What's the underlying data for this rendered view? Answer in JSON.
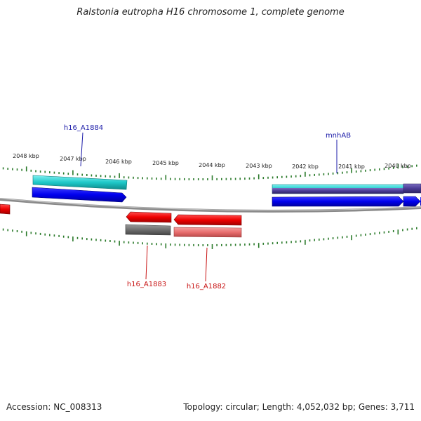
{
  "title": "Ralstonia eutropha H16 chromosome 1, complete genome",
  "accession": "Accession: NC_008313",
  "summary": "Topology: circular; Length: 4,052,032 bp; Genes: 3,711",
  "tick_labels": [
    "2048 kbp",
    "2047 kbp",
    "2046 kbp",
    "2045 kbp",
    "2044 kbp",
    "2043 kbp",
    "2042 kbp",
    "2041 kbp",
    "2040 kbp"
  ],
  "gene_labels": {
    "h16_A1884": "h16_A1884",
    "mnhAB": "mnhAB",
    "h16_A1883": "h16_A1883",
    "h16_A1882": "h16_A1882"
  },
  "colors": {
    "forward_cds": "#0000ee",
    "forward_feature": "#1ec8c8",
    "forward_dark": "#4b3c96",
    "reverse_cds": "#ee0000",
    "reverse_feature": "#e86e6e",
    "reverse_gray": "#6e6e6e",
    "backbone": "#808080",
    "ticks": "#2a7a2a",
    "label_forward": "#1a1aa8",
    "label_reverse": "#c81414"
  }
}
